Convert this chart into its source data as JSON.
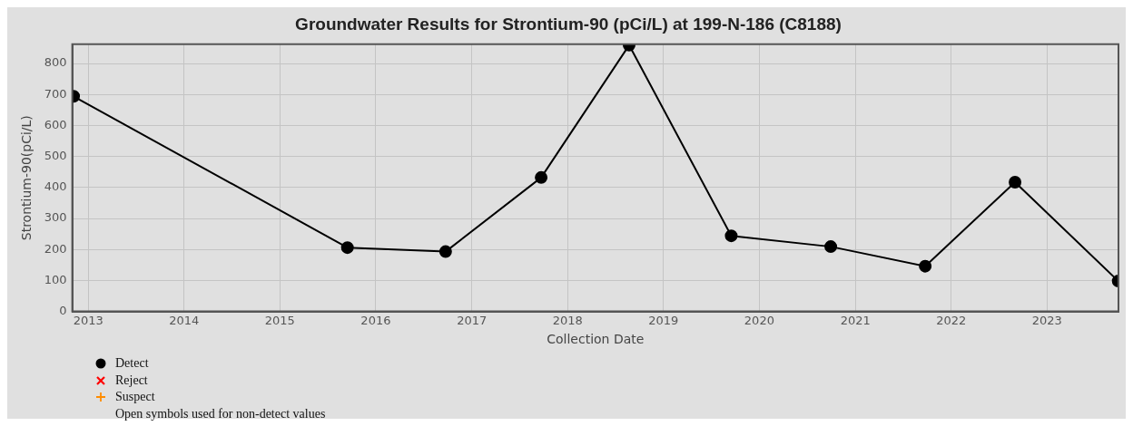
{
  "chart_data": {
    "type": "line",
    "title": "Groundwater Results for Strontium-90 (pCi/L) at 199-N-186 (C8188)",
    "xlabel": "Collection Date",
    "ylabel": "Strontium-90(pCi/L)",
    "x": [
      "2012-11-06",
      "2015-09-15",
      "2016-09-23",
      "2017-09-22",
      "2018-08-23",
      "2019-09-16",
      "2020-09-29",
      "2021-09-24",
      "2022-09-01",
      "2023-09-29"
    ],
    "series": [
      {
        "name": "Detect",
        "color": "#000000",
        "marker": "circle",
        "values": [
          694,
          206,
          193,
          432,
          859,
          244,
          209,
          146,
          417,
          98
        ]
      },
      {
        "name": "Reject",
        "color": "#ff0000",
        "marker": "cross",
        "values": [
          null,
          null,
          null,
          null,
          null,
          null,
          null,
          null,
          null,
          null
        ]
      },
      {
        "name": "Suspect",
        "color": "#ff8c00",
        "marker": "plus",
        "values": [
          null,
          null,
          null,
          null,
          null,
          null,
          null,
          null,
          null,
          null
        ]
      }
    ],
    "xlim": [
      "2012-11-01",
      "2023-09-30"
    ],
    "xticks": [
      "2013",
      "2014",
      "2015",
      "2016",
      "2017",
      "2018",
      "2019",
      "2020",
      "2021",
      "2022",
      "2023"
    ],
    "ylim": [
      0,
      862
    ],
    "yticks": [
      0,
      100,
      200,
      300,
      400,
      500,
      600,
      700,
      800
    ],
    "grid": true,
    "legend": "bottom left",
    "line_style": "solid",
    "annotations": [
      "Open symbols used for non-detect values"
    ]
  }
}
